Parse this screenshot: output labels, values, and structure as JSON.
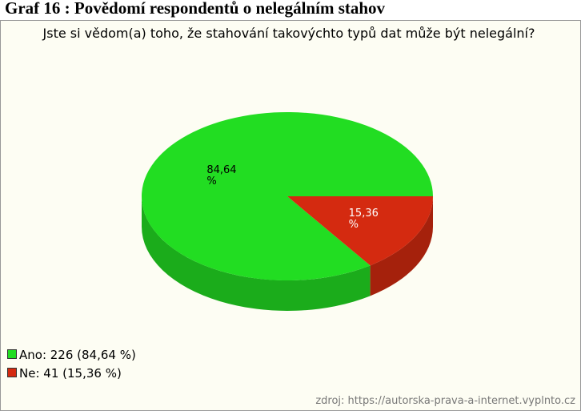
{
  "heading": "Graf 16 : Povědomí respondentů o nelegálním stahov",
  "chart_data": {
    "type": "pie",
    "title": "Jste si vědom(a) toho, že stahování takovýchto typů dat může být nelegální?",
    "categories": [
      "Ano",
      "Ne"
    ],
    "values": [
      84.64,
      15.36
    ],
    "value_labels": [
      "84,64 %",
      "15,36 %"
    ],
    "colors": [
      "#22dd22",
      "#d42a10"
    ],
    "legend_labels": [
      "Ano: 226 (84,64 %)",
      "Ne: 41 (15,36 %)"
    ],
    "legend": "bottom-left",
    "source": "zdroj: https://autorska-prava-a-internet.vyplnto.cz"
  }
}
